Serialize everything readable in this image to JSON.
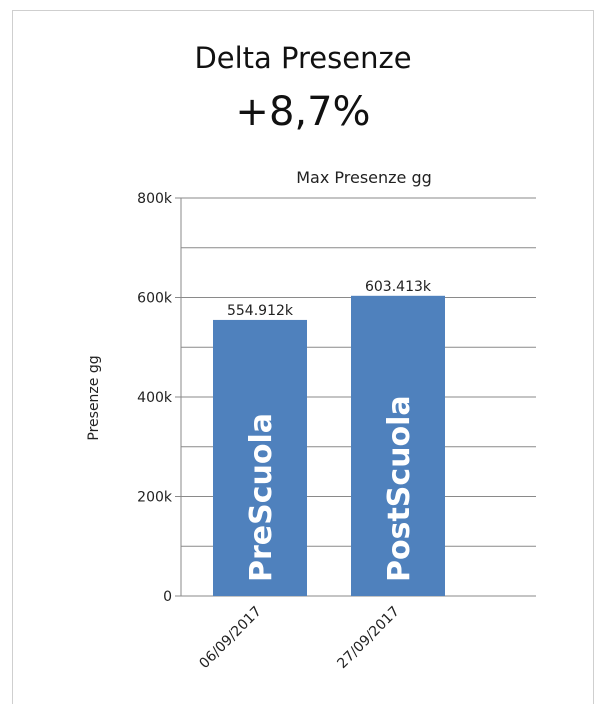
{
  "panel": {
    "title": "Delta Presenze",
    "value": "+8,7%"
  },
  "chart_data": {
    "type": "bar",
    "title": "Max Presenze gg",
    "xlabel": "",
    "ylabel": "Presenze gg",
    "ylim": [
      0,
      800000
    ],
    "yticks": [
      0,
      200000,
      400000,
      600000,
      800000
    ],
    "ytick_labels": [
      "0",
      "200k",
      "400k",
      "600k",
      "800k"
    ],
    "grid": true,
    "categories": [
      "06/09/2017",
      "27/09/2017"
    ],
    "values": [
      554912,
      603413
    ],
    "data_labels": [
      "554.912k",
      "603.413k"
    ],
    "bar_labels": [
      "PreScuola",
      "PostScuola"
    ],
    "bar_color": "#4f81bd"
  }
}
